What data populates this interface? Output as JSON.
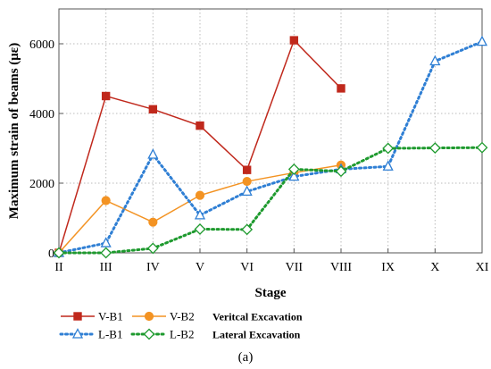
{
  "chart_data": {
    "type": "line",
    "xlabel": "Stage",
    "ylabel": "Maximum strain of beams (με)",
    "categories": [
      "II",
      "III",
      "IV",
      "V",
      "VI",
      "VII",
      "VIII",
      "IX",
      "X",
      "XI"
    ],
    "ylim": [
      0,
      7000
    ],
    "yticks": [
      0,
      2000,
      4000,
      6000
    ],
    "grid": true,
    "legend_position": "bottom",
    "series": [
      {
        "name": "V-B1",
        "color": "#c0281c",
        "dash": "solid",
        "marker": "square",
        "values": [
          0,
          4500,
          4120,
          3650,
          2380,
          6100,
          4720,
          null,
          null,
          null
        ]
      },
      {
        "name": "V-B2",
        "color": "#f39323",
        "dash": "solid",
        "marker": "circle",
        "values": [
          0,
          1500,
          880,
          1650,
          2050,
          2300,
          2520,
          null,
          null,
          null
        ]
      },
      {
        "name": "L-B1",
        "color": "#2f7fd4",
        "dash": "dotted",
        "marker": "triangle",
        "values": [
          0,
          280,
          2820,
          1080,
          1760,
          2190,
          2400,
          2480,
          5500,
          6060
        ]
      },
      {
        "name": "L-B2",
        "color": "#1e9a2e",
        "dash": "dotted",
        "marker": "diamond",
        "values": [
          0,
          0,
          130,
          680,
          670,
          2400,
          2340,
          3000,
          3010,
          3020
        ]
      }
    ],
    "legend_groups": [
      "Veritcal Excavation",
      "Lateral Excavation"
    ]
  },
  "caption": "(a)"
}
